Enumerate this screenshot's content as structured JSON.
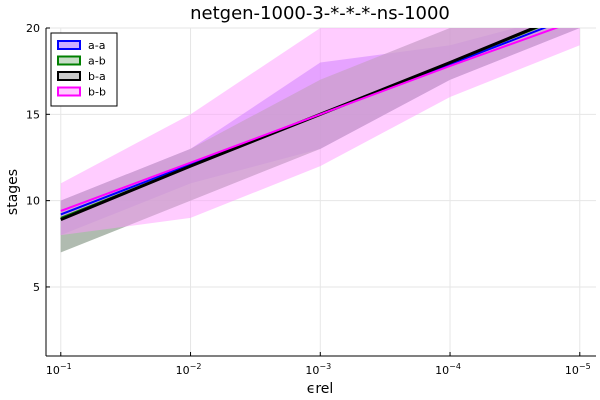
{
  "chart_data": {
    "type": "line",
    "title": "netgen-1000-3-*-*-*-ns-1000",
    "xlabel": "ϵrel",
    "ylabel": "stages",
    "x_scale": "log10, reversed",
    "x": [
      0.1,
      0.01,
      0.001,
      0.0001,
      1e-05
    ],
    "x_tick_labels": [
      "10",
      "10",
      "10",
      "10",
      "10"
    ],
    "x_tick_exponents": [
      "−1",
      "−2",
      "−3",
      "−4",
      "−5"
    ],
    "xlim": [
      0.13,
      7.5e-06
    ],
    "ylim": [
      1,
      20
    ],
    "y_ticks": [
      5,
      10,
      15,
      20
    ],
    "grid": true,
    "legend_position": "top-left",
    "series": [
      {
        "name": "a-a",
        "color": "#0000ff",
        "fill_color": "#9b59ff",
        "values": [
          9.2,
          12.1,
          15.0,
          17.9,
          20.8
        ],
        "lower": [
          8.0,
          11.0,
          13.0,
          17.0,
          20.0
        ],
        "upper": [
          10.0,
          13.0,
          18.0,
          19.0,
          21.0
        ]
      },
      {
        "name": "a-b",
        "color": "#008000",
        "fill_color": "#8fbc8f",
        "values": [
          9.0,
          12.0,
          15.0,
          18.0,
          21.0
        ],
        "lower": [
          7.0,
          10.0,
          13.0,
          17.0,
          20.0
        ],
        "upper": [
          10.0,
          13.0,
          17.0,
          20.0,
          22.0
        ]
      },
      {
        "name": "b-a",
        "color": "#000000",
        "fill_color": "#999999",
        "values": [
          8.9,
          12.0,
          15.0,
          18.0,
          21.1
        ],
        "lower": [
          7.0,
          10.0,
          13.0,
          17.0,
          20.0
        ],
        "upper": [
          10.0,
          13.0,
          17.0,
          20.0,
          22.0
        ]
      },
      {
        "name": "b-b",
        "color": "#ff00ff",
        "fill_color": "#ff99ff",
        "values": [
          9.4,
          12.2,
          15.0,
          17.8,
          20.5
        ],
        "lower": [
          8.0,
          9.0,
          12.0,
          16.0,
          19.0
        ],
        "upper": [
          11.0,
          15.0,
          20.0,
          20.0,
          20.0
        ]
      }
    ]
  }
}
